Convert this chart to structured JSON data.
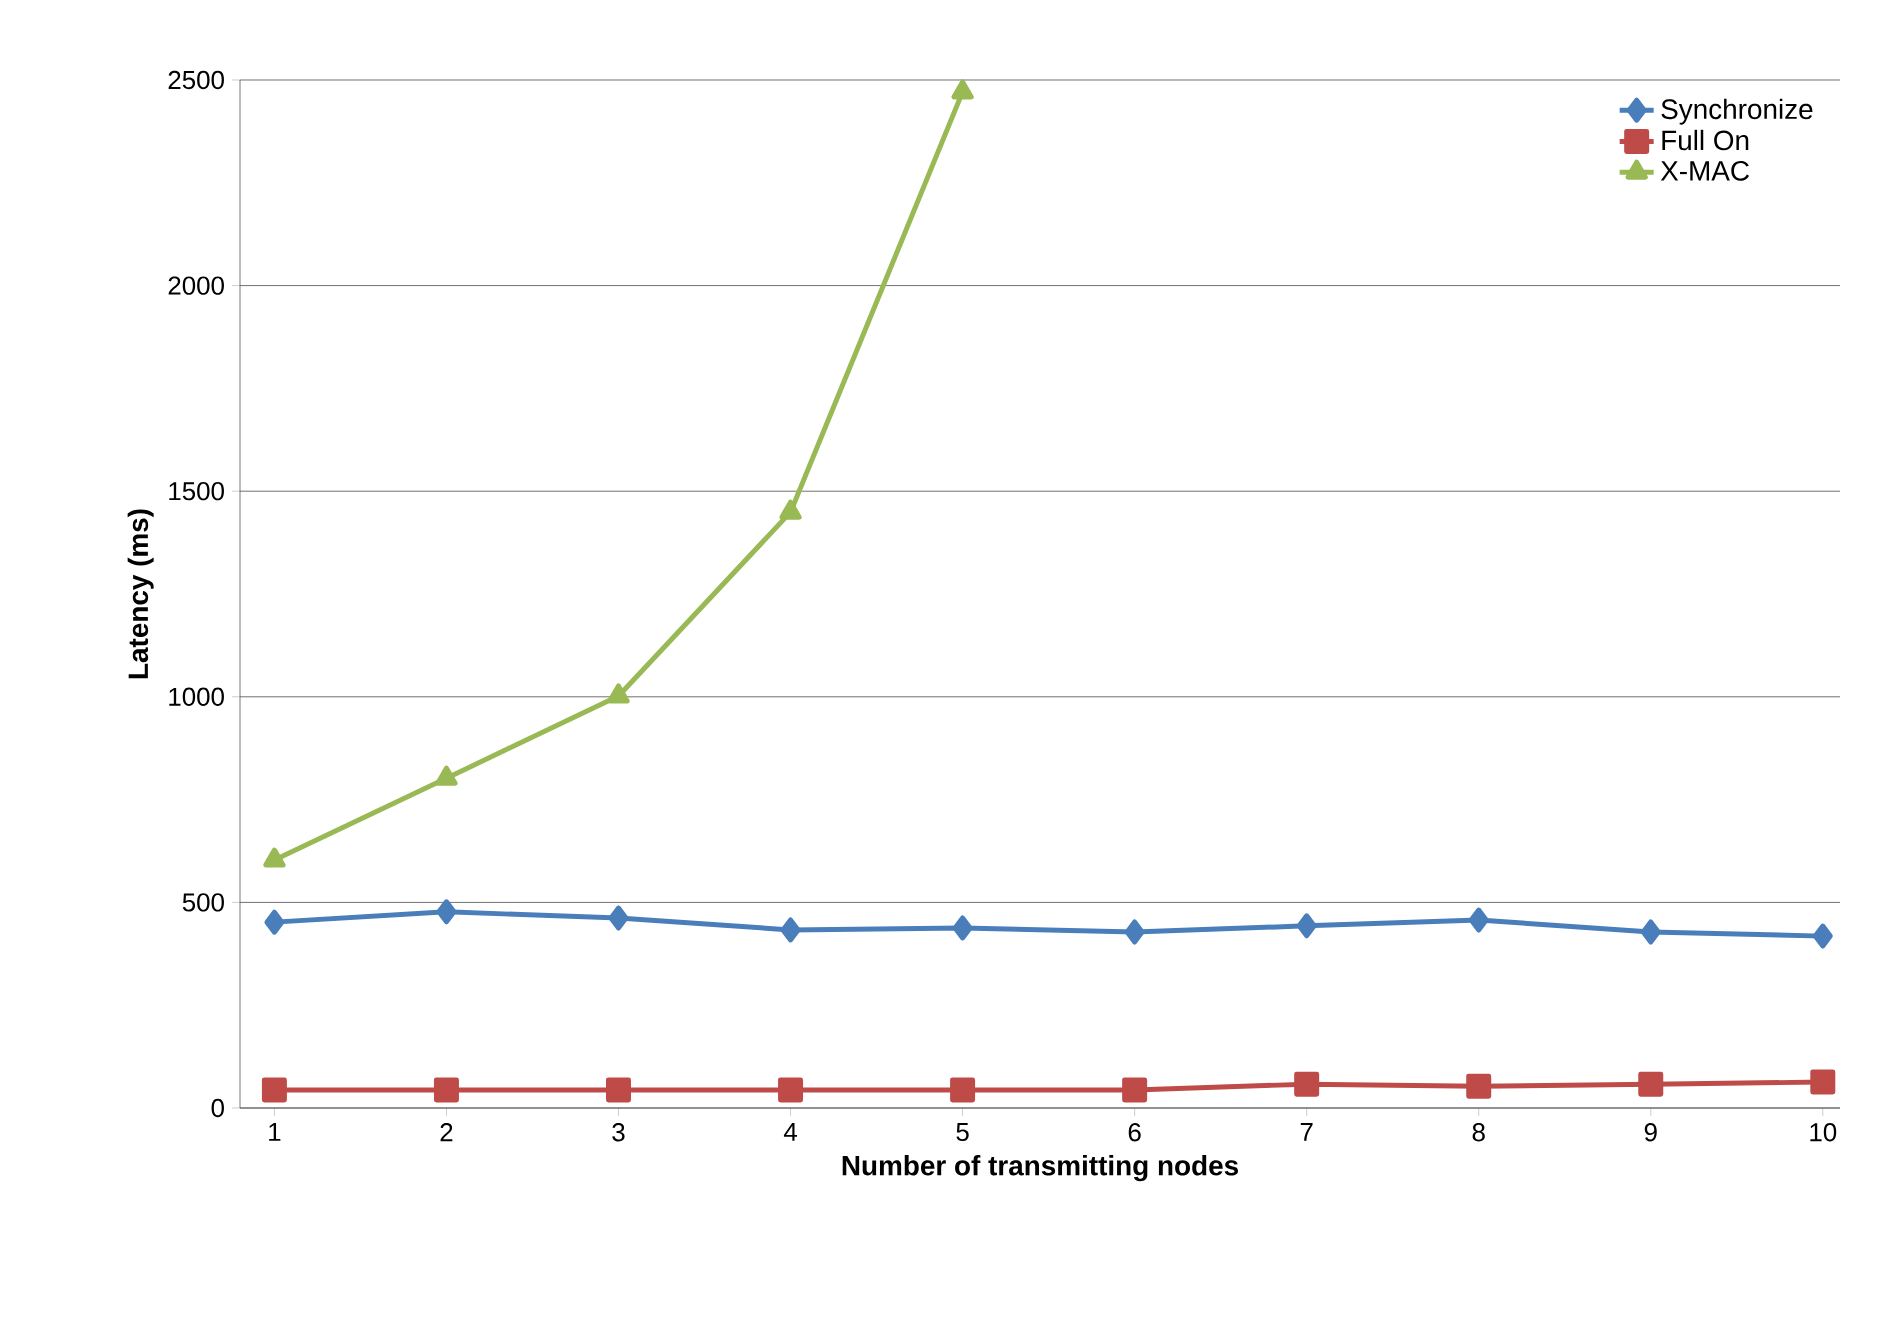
{
  "chart_data": {
    "type": "line",
    "xlabel": "Number of transmitting nodes",
    "ylabel": "Latency (ms)",
    "categories": [
      "1",
      "2",
      "3",
      "4",
      "5",
      "6",
      "7",
      "8",
      "9",
      "10"
    ],
    "series": [
      {
        "name": "Synchronize",
        "color": "#4a7ebb",
        "marker": "diamond",
        "values": [
          452,
          477,
          462,
          433,
          438,
          428,
          443,
          457,
          428,
          418
        ]
      },
      {
        "name": "Full On",
        "color": "#be4b48",
        "marker": "square",
        "values": [
          44,
          44,
          44,
          44,
          44,
          44,
          58,
          53,
          58,
          63
        ]
      },
      {
        "name": "X-MAC",
        "color": "#98b954",
        "marker": "triangle",
        "values": [
          603,
          802,
          1002,
          1449,
          2471,
          null,
          null,
          null,
          null,
          null
        ]
      }
    ],
    "ylim": [
      0,
      2500
    ],
    "yticks": [
      0,
      500,
      1000,
      1500,
      2000,
      2500
    ],
    "grid": "y",
    "legend": "top right",
    "line_style": "solid"
  }
}
